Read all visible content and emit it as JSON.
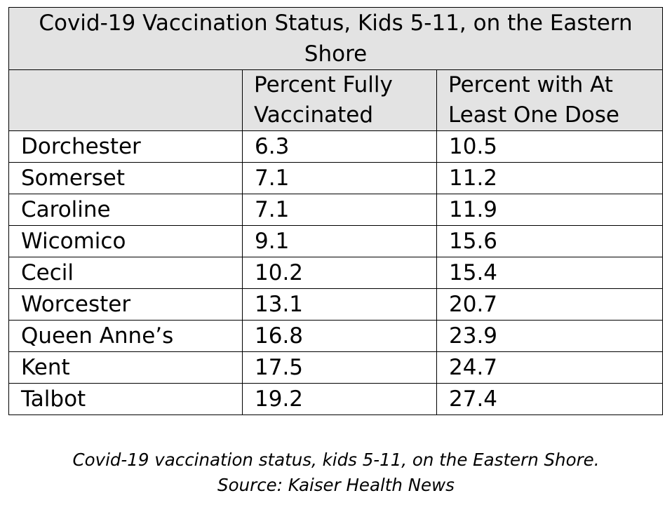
{
  "table": {
    "title": "Covid-19 Vaccination Status, Kids 5-11, on the Eastern Shore",
    "columns": [
      "Percent Fully Vaccinated",
      "Percent with At Least One Dose"
    ],
    "rows": [
      [
        "Dorchester",
        6.3,
        10.5
      ],
      [
        "Somerset",
        7.1,
        11.2
      ],
      [
        "Caroline",
        7.1,
        11.9
      ],
      [
        "Wicomico",
        9.1,
        15.6
      ],
      [
        "Cecil",
        10.2,
        15.4
      ],
      [
        "Worcester",
        13.1,
        20.7
      ],
      [
        "Queen Anne’s",
        16.8,
        23.9
      ],
      [
        "Kent",
        17.5,
        24.7
      ],
      [
        "Talbot",
        19.2,
        27.4
      ]
    ]
  },
  "caption": {
    "lines": [
      "Covid-19 vaccination status, kids 5-11, on the Eastern Shore.",
      "Source: Kaiser Health News"
    ]
  }
}
